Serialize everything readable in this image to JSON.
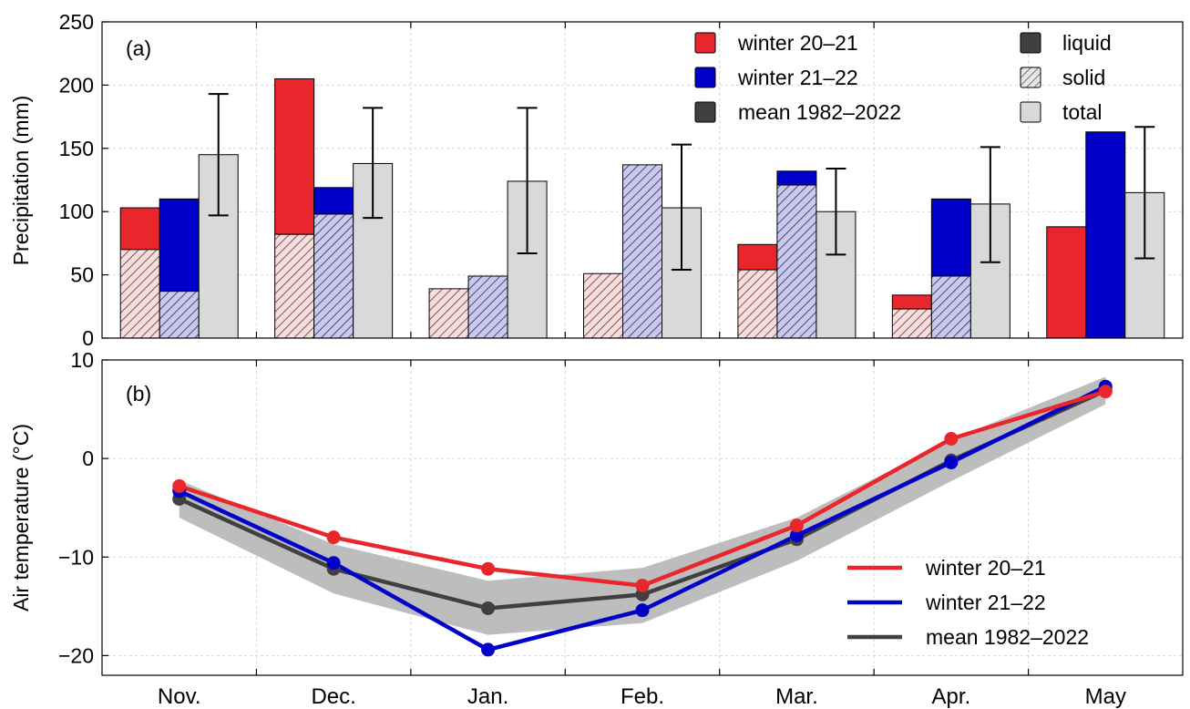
{
  "chart_data": [
    {
      "panel_label": "(a)",
      "type": "bar",
      "ylabel": "Precipitation (mm)",
      "ylim": [
        0,
        250
      ],
      "yticks": [
        "0",
        "50",
        "100",
        "150",
        "200",
        "250"
      ],
      "categories": [
        "Nov.",
        "Dec.",
        "Jan.",
        "Feb.",
        "Mar.",
        "Apr.",
        "May"
      ],
      "grid": true,
      "series": [
        {
          "name": "winter 20–21",
          "color": "#e8262c",
          "total": [
            103,
            205,
            39,
            51,
            74,
            34,
            88
          ],
          "solid": [
            70,
            82,
            39,
            51,
            54,
            23,
            0
          ]
        },
        {
          "name": "winter 21–22",
          "color": "#0000c8",
          "total": [
            110,
            119,
            49,
            137,
            132,
            110,
            163
          ],
          "solid": [
            37,
            98,
            49,
            137,
            121,
            49,
            0
          ]
        },
        {
          "name": "mean 1982–2022",
          "color": "#d9d9d9",
          "total": [
            145,
            138,
            124,
            103,
            100,
            106,
            115
          ],
          "error_low": [
            97,
            95,
            67,
            54,
            66,
            60,
            63
          ],
          "error_high": [
            193,
            182,
            182,
            153,
            134,
            151,
            167
          ]
        }
      ],
      "legend": {
        "placement": "top-right",
        "series_entries": [
          {
            "label": "winter 20–21",
            "color": "#e8262c"
          },
          {
            "label": "winter 21–22",
            "color": "#0000c8"
          },
          {
            "label": "mean 1982–2022",
            "color": "#404040"
          }
        ],
        "type_entries": [
          {
            "label": "liquid",
            "style": "dark"
          },
          {
            "label": "solid",
            "style": "hatch"
          },
          {
            "label": "total",
            "style": "light"
          }
        ]
      }
    },
    {
      "panel_label": "(b)",
      "type": "line",
      "ylabel": "Air temperature (°C)",
      "ylim": [
        -22,
        10
      ],
      "yticks": [
        "−20",
        "−10",
        "0",
        "10"
      ],
      "x": [
        "Nov.",
        "Dec.",
        "Jan.",
        "Feb.",
        "Mar.",
        "Apr.",
        "May"
      ],
      "grid": true,
      "series": [
        {
          "name": "winter 20–21",
          "color": "#e8262c",
          "values": [
            -2.8,
            -8.0,
            -11.2,
            -12.9,
            -6.8,
            2.0,
            6.8
          ]
        },
        {
          "name": "winter 21–22",
          "color": "#0000c8",
          "values": [
            -3.3,
            -10.6,
            -19.4,
            -15.4,
            -7.8,
            -0.4,
            7.3
          ]
        },
        {
          "name": "mean 1982–2022",
          "color": "#404040",
          "values": [
            -4.1,
            -11.2,
            -15.2,
            -13.8,
            -8.2,
            -0.2,
            6.9
          ],
          "band_low": [
            -6.0,
            -13.7,
            -17.9,
            -16.7,
            -10.4,
            -2.3,
            5.5
          ],
          "band_high": [
            -2.2,
            -8.7,
            -12.4,
            -11.1,
            -6.0,
            1.9,
            8.3
          ]
        }
      ],
      "legend": {
        "placement": "bottom-right"
      }
    }
  ]
}
